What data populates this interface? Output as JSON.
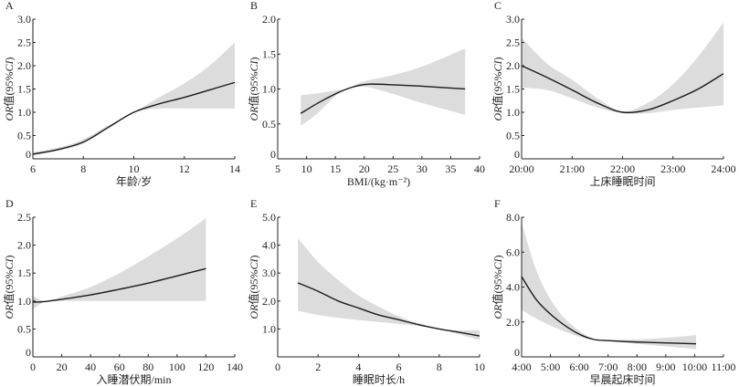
{
  "ylabel_parts": [
    "OR",
    "值(95%",
    "CI",
    ")"
  ],
  "colors": {
    "line": "#1a1a1a",
    "band": "#dcdcdd",
    "axis": "#222222"
  },
  "chart_data": [
    {
      "panel": "A",
      "type": "line",
      "xlabel": "年龄/岁",
      "xlim": [
        6,
        14
      ],
      "ylim": [
        0,
        3.0
      ],
      "xticks": [
        6,
        8,
        10,
        12,
        14
      ],
      "xtick_labels": [
        "6",
        "8",
        "10",
        "12",
        "14"
      ],
      "yticks": [
        0,
        0.5,
        1.0,
        1.5,
        2.0,
        2.5,
        3.0
      ],
      "ytick_labels": [
        "0",
        "0.5",
        "1.0",
        "1.5",
        "2.0",
        "2.5",
        "3.0"
      ],
      "x": [
        6,
        7,
        8,
        9,
        10,
        11,
        12,
        13,
        14
      ],
      "y": [
        0.1,
        0.2,
        0.36,
        0.68,
        1.0,
        1.18,
        1.32,
        1.48,
        1.64
      ],
      "ci_lower": [
        0.08,
        0.17,
        0.33,
        0.66,
        1.0,
        1.08,
        1.08,
        1.08,
        1.08
      ],
      "ci_upper": [
        0.14,
        0.24,
        0.42,
        0.72,
        1.0,
        1.32,
        1.62,
        2.0,
        2.5
      ]
    },
    {
      "panel": "B",
      "type": "line",
      "xlabel": "BMI/(kg·m⁻²)",
      "xlim": [
        5,
        40
      ],
      "ylim": [
        0,
        2.0
      ],
      "xticks": [
        5,
        10,
        15,
        20,
        25,
        30,
        35,
        40
      ],
      "xtick_labels": [
        "5",
        "10",
        "15",
        "20",
        "25",
        "30",
        "35",
        "40"
      ],
      "yticks": [
        0,
        0.5,
        1.0,
        1.5,
        2.0
      ],
      "ytick_labels": [
        "0",
        "0.5",
        "1.0",
        "1.5",
        "2.0"
      ],
      "x": [
        9,
        12,
        15,
        17,
        19,
        21,
        25,
        30,
        37.5
      ],
      "y": [
        0.65,
        0.8,
        0.93,
        1.0,
        1.05,
        1.07,
        1.06,
        1.04,
        1.0
      ],
      "ci_lower": [
        0.47,
        0.66,
        0.9,
        1.0,
        1.03,
        1.02,
        0.93,
        0.8,
        0.63
      ],
      "ci_upper": [
        0.91,
        0.94,
        0.98,
        1.0,
        1.08,
        1.13,
        1.2,
        1.32,
        1.58
      ]
    },
    {
      "panel": "C",
      "type": "line",
      "xlabel": "上床睡眠时间",
      "xlim": [
        20,
        24
      ],
      "ylim": [
        0,
        3.0
      ],
      "xticks": [
        20,
        21,
        22,
        23,
        24
      ],
      "xtick_labels": [
        "20:00",
        "21:00",
        "22:00",
        "23:00",
        "24:00"
      ],
      "yticks": [
        0,
        0.5,
        1.0,
        1.5,
        2.0,
        2.5,
        3.0
      ],
      "ytick_labels": [
        "0",
        "0.5",
        "1.0",
        "1.5",
        "2.0",
        "2.5",
        "3.0"
      ],
      "x": [
        20,
        20.5,
        21,
        21.5,
        22,
        22.5,
        23,
        23.5,
        24
      ],
      "y": [
        2.0,
        1.75,
        1.48,
        1.2,
        1.0,
        1.05,
        1.25,
        1.5,
        1.83
      ],
      "ci_lower": [
        1.53,
        1.48,
        1.3,
        1.1,
        0.98,
        0.98,
        1.05,
        1.1,
        1.15
      ],
      "ci_upper": [
        2.6,
        2.05,
        1.7,
        1.3,
        1.02,
        1.2,
        1.6,
        2.2,
        2.93
      ]
    },
    {
      "panel": "D",
      "type": "line",
      "xlabel": "入睡潜伏期/min",
      "xlim": [
        0,
        140
      ],
      "ylim": [
        0,
        2.5
      ],
      "xticks": [
        0,
        20,
        40,
        60,
        80,
        100,
        120,
        140
      ],
      "xtick_labels": [
        "0",
        "20",
        "40",
        "60",
        "80",
        "100",
        "120",
        "140"
      ],
      "yticks": [
        0,
        0.5,
        1.0,
        1.5,
        2.0,
        2.5
      ],
      "ytick_labels": [
        "0",
        "0.5",
        "1.0",
        "1.5",
        "2.0",
        "2.5"
      ],
      "x": [
        0,
        8,
        20,
        40,
        60,
        80,
        100,
        120
      ],
      "y": [
        0.98,
        0.99,
        1.03,
        1.11,
        1.21,
        1.32,
        1.45,
        1.58
      ],
      "ci_lower": [
        0.85,
        0.98,
        1.0,
        1.0,
        1.0,
        1.0,
        1.0,
        1.0
      ],
      "ci_upper": [
        1.1,
        1.0,
        1.08,
        1.25,
        1.5,
        1.8,
        2.12,
        2.48
      ]
    },
    {
      "panel": "E",
      "type": "line",
      "xlabel": "睡眠时长/h",
      "xlim": [
        0,
        10
      ],
      "ylim": [
        0,
        5.0
      ],
      "xticks": [
        0,
        2,
        4,
        6,
        8,
        10
      ],
      "xtick_labels": [
        "0",
        "2",
        "4",
        "6",
        "8",
        "10"
      ],
      "yticks": [
        1.0,
        2.0,
        3.0,
        4.0,
        5.0
      ],
      "ytick_labels": [
        "1.0",
        "2.0",
        "3.0",
        "4.0",
        "5.0"
      ],
      "x": [
        1,
        2,
        3,
        4,
        5,
        6,
        7,
        8,
        9,
        10
      ],
      "y": [
        2.65,
        2.35,
        2.0,
        1.75,
        1.5,
        1.33,
        1.15,
        1.0,
        0.88,
        0.75
      ],
      "ci_lower": [
        1.65,
        1.5,
        1.4,
        1.32,
        1.25,
        1.18,
        1.1,
        1.0,
        0.8,
        0.6
      ],
      "ci_upper": [
        4.25,
        3.4,
        2.75,
        2.2,
        1.8,
        1.45,
        1.2,
        1.0,
        0.95,
        0.95
      ]
    },
    {
      "panel": "F",
      "type": "line",
      "xlabel": "早晨起床时间",
      "xlim": [
        4,
        11
      ],
      "ylim": [
        0,
        8.0
      ],
      "xticks": [
        4,
        5,
        6,
        7,
        8,
        9,
        10,
        11
      ],
      "xtick_labels": [
        "4:00",
        "5:00",
        "6:00",
        "7:00",
        "8:00",
        "9:00",
        "10:00",
        "11:00"
      ],
      "yticks": [
        0,
        2,
        4,
        6,
        8
      ],
      "ytick_labels": [
        "0",
        "2.0",
        "4.0",
        "6.0",
        "8.0"
      ],
      "x": [
        4,
        4.5,
        5,
        5.5,
        6,
        6.5,
        7,
        8,
        9,
        10.05
      ],
      "y": [
        4.6,
        3.3,
        2.45,
        1.8,
        1.3,
        1.0,
        0.93,
        0.85,
        0.8,
        0.75
      ],
      "ci_lower": [
        2.7,
        2.2,
        1.8,
        1.45,
        1.15,
        0.98,
        0.9,
        0.75,
        0.6,
        0.45
      ],
      "ci_upper": [
        7.7,
        5.0,
        3.3,
        2.2,
        1.5,
        1.02,
        0.97,
        1.0,
        1.1,
        1.25
      ]
    }
  ]
}
